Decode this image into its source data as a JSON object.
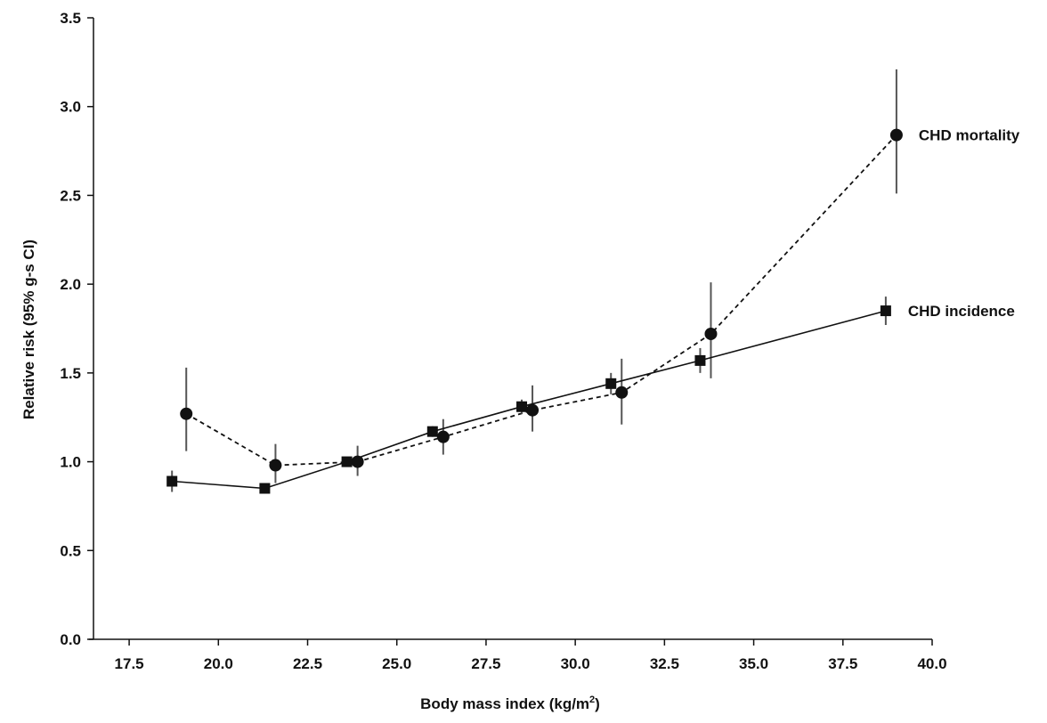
{
  "chart_data": {
    "type": "line",
    "title": "",
    "xlabel": "Body mass index (kg/m",
    "xlabel_sup": "2",
    "xlabel_close": ")",
    "ylabel": "Relative risk (95% g-s CI)",
    "xlim": [
      16.5,
      40.0
    ],
    "ylim": [
      0.0,
      3.5
    ],
    "x_ticks": [
      17.5,
      20.0,
      22.5,
      25.0,
      27.5,
      30.0,
      32.5,
      35.0,
      37.5,
      40.0
    ],
    "x_tick_labels": [
      "17.5",
      "20.0",
      "22.5",
      "25.0",
      "27.5",
      "30.0",
      "32.5",
      "35.0",
      "37.5",
      "40.0"
    ],
    "y_ticks": [
      0.0,
      0.5,
      1.0,
      1.5,
      2.0,
      2.5,
      3.0,
      3.5
    ],
    "y_tick_labels": [
      "0.0",
      "0.5",
      "1.0",
      "1.5",
      "2.0",
      "2.5",
      "3.0",
      "3.5"
    ],
    "grid": false,
    "legend": "none (series labelled at line ends)",
    "series": [
      {
        "name": "CHD mortality",
        "marker": "circle",
        "line_style": "dashed",
        "color": "#111111",
        "points": [
          {
            "x": 19.1,
            "y": 1.27,
            "lo": 1.06,
            "hi": 1.53
          },
          {
            "x": 21.6,
            "y": 0.98,
            "lo": 0.88,
            "hi": 1.1
          },
          {
            "x": 23.9,
            "y": 1.0,
            "lo": 0.92,
            "hi": 1.09
          },
          {
            "x": 26.3,
            "y": 1.14,
            "lo": 1.04,
            "hi": 1.24
          },
          {
            "x": 28.8,
            "y": 1.29,
            "lo": 1.17,
            "hi": 1.43
          },
          {
            "x": 31.3,
            "y": 1.39,
            "lo": 1.21,
            "hi": 1.58
          },
          {
            "x": 33.8,
            "y": 1.72,
            "lo": 1.47,
            "hi": 2.01
          },
          {
            "x": 39.0,
            "y": 2.84,
            "lo": 2.51,
            "hi": 3.21
          }
        ]
      },
      {
        "name": "CHD incidence",
        "marker": "square",
        "line_style": "solid",
        "color": "#111111",
        "points": [
          {
            "x": 18.7,
            "y": 0.89,
            "lo": 0.83,
            "hi": 0.95
          },
          {
            "x": 21.3,
            "y": 0.85,
            "lo": 0.82,
            "hi": 0.88
          },
          {
            "x": 23.6,
            "y": 1.0,
            "lo": 0.98,
            "hi": 1.02
          },
          {
            "x": 26.0,
            "y": 1.17,
            "lo": 1.14,
            "hi": 1.2
          },
          {
            "x": 28.5,
            "y": 1.31,
            "lo": 1.27,
            "hi": 1.35
          },
          {
            "x": 31.0,
            "y": 1.44,
            "lo": 1.38,
            "hi": 1.5
          },
          {
            "x": 33.5,
            "y": 1.57,
            "lo": 1.5,
            "hi": 1.64
          },
          {
            "x": 38.7,
            "y": 1.85,
            "lo": 1.77,
            "hi": 1.93
          }
        ]
      }
    ]
  }
}
